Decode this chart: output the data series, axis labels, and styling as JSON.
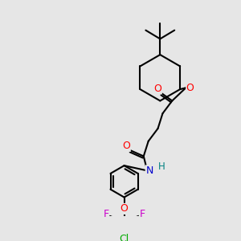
{
  "bg_color": "#e6e6e6",
  "atom_colors": {
    "O": "#ff0000",
    "N": "#0000cc",
    "F": "#cc00cc",
    "Cl": "#00aa00",
    "H": "#008080",
    "C": "#000000"
  },
  "bond_color": "#000000",
  "bond_width": 1.5,
  "fig_size": [
    3.0,
    3.0
  ],
  "dpi": 100
}
